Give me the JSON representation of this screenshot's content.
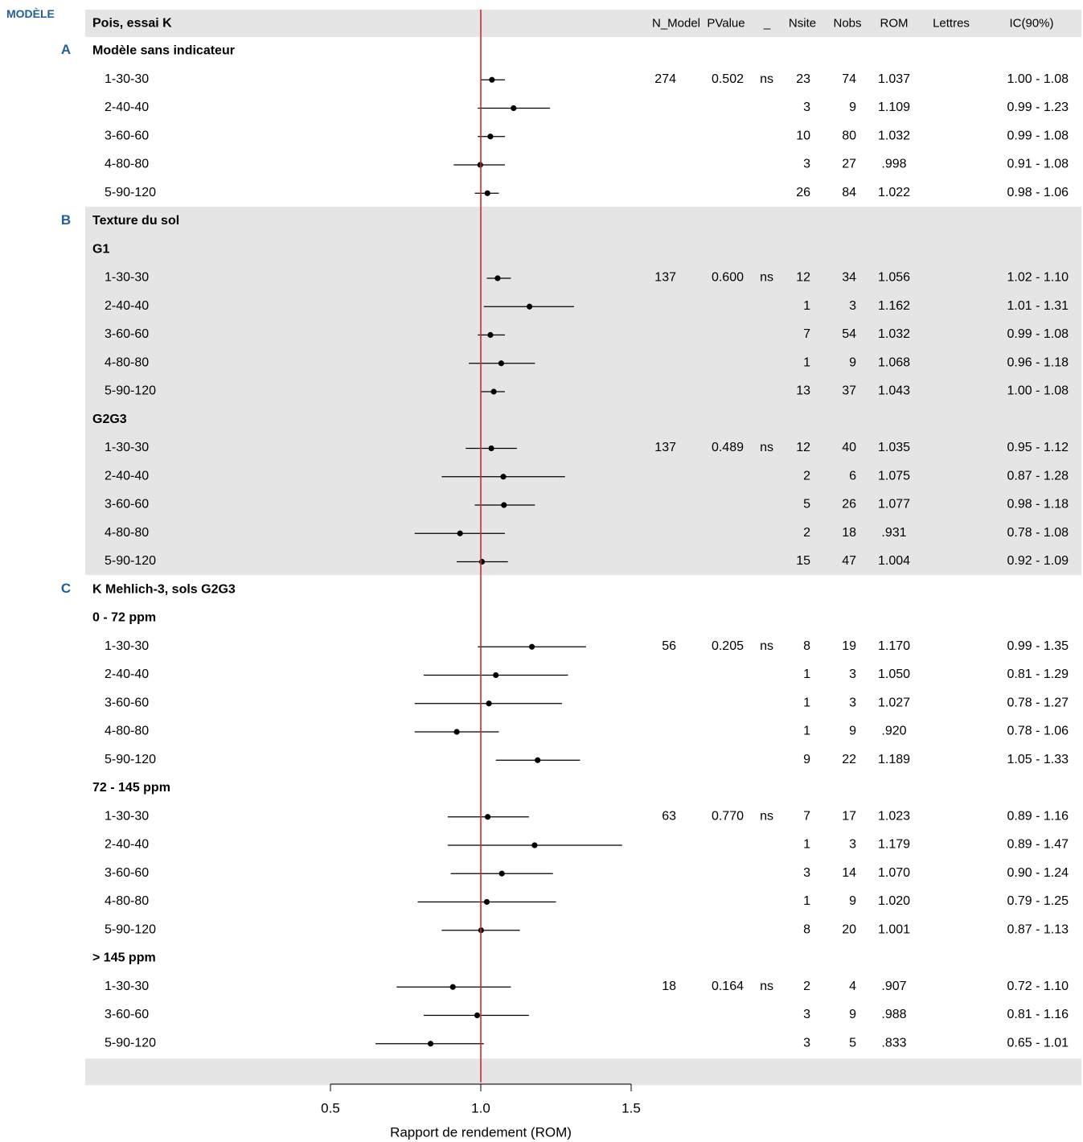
{
  "corner_label": "MODÈLE",
  "panel_letters": [
    "A",
    "B",
    "C"
  ],
  "colors": {
    "reference_line": "#d62728",
    "shaded_band": "#e5e5e5",
    "marker": "#000000",
    "panel_letter": "#1f5f9e"
  },
  "chart_data": {
    "type": "forest",
    "header": {
      "label": "Pois, essai K",
      "columns": [
        "N_Model",
        "PValue",
        "_",
        "Nsite",
        "Nobs",
        "ROM",
        "Lettres",
        "IC(90%)"
      ]
    },
    "xlabel": "Rapport de rendement (ROM)",
    "xticks": [
      "0.5",
      "1.0",
      "1.5"
    ],
    "xlim": [
      0.5,
      1.5
    ],
    "reference_line": 1.0,
    "rows": [
      {
        "label": "Modèle sans indicateur",
        "bold": true,
        "band": 0
      },
      {
        "label": "1-30-30",
        "band": 0,
        "est": 1.037,
        "lo": 1.0,
        "hi": 1.08,
        "n_model": "274",
        "pvalue": "0.502",
        "sig": "ns",
        "nsite": "23",
        "nobs": "74",
        "rom": "1.037",
        "ic": "1.00 - 1.08"
      },
      {
        "label": "2-40-40",
        "band": 0,
        "est": 1.109,
        "lo": 0.99,
        "hi": 1.23,
        "nsite": "3",
        "nobs": "9",
        "rom": "1.109",
        "ic": "0.99 - 1.23"
      },
      {
        "label": "3-60-60",
        "band": 0,
        "est": 1.032,
        "lo": 0.99,
        "hi": 1.08,
        "nsite": "10",
        "nobs": "80",
        "rom": "1.032",
        "ic": "0.99 - 1.08"
      },
      {
        "label": "4-80-80",
        "band": 0,
        "est": 0.998,
        "lo": 0.91,
        "hi": 1.08,
        "nsite": "3",
        "nobs": "27",
        "rom": ".998",
        "ic": "0.91 - 1.08"
      },
      {
        "label": "5-90-120",
        "band": 0,
        "est": 1.022,
        "lo": 0.98,
        "hi": 1.06,
        "nsite": "26",
        "nobs": "84",
        "rom": "1.022",
        "ic": "0.98 - 1.06"
      },
      {
        "label": "Texture du sol",
        "bold": true,
        "band": 1
      },
      {
        "label": "G1",
        "bold": true,
        "band": 1
      },
      {
        "label": "1-30-30",
        "band": 1,
        "est": 1.056,
        "lo": 1.02,
        "hi": 1.1,
        "n_model": "137",
        "pvalue": "0.600",
        "sig": "ns",
        "nsite": "12",
        "nobs": "34",
        "rom": "1.056",
        "ic": "1.02 - 1.10"
      },
      {
        "label": "2-40-40",
        "band": 1,
        "est": 1.162,
        "lo": 1.01,
        "hi": 1.31,
        "nsite": "1",
        "nobs": "3",
        "rom": "1.162",
        "ic": "1.01 - 1.31"
      },
      {
        "label": "3-60-60",
        "band": 1,
        "est": 1.032,
        "lo": 0.99,
        "hi": 1.08,
        "nsite": "7",
        "nobs": "54",
        "rom": "1.032",
        "ic": "0.99 - 1.08"
      },
      {
        "label": "4-80-80",
        "band": 1,
        "est": 1.068,
        "lo": 0.96,
        "hi": 1.18,
        "nsite": "1",
        "nobs": "9",
        "rom": "1.068",
        "ic": "0.96 - 1.18"
      },
      {
        "label": "5-90-120",
        "band": 1,
        "est": 1.043,
        "lo": 1.0,
        "hi": 1.08,
        "nsite": "13",
        "nobs": "37",
        "rom": "1.043",
        "ic": "1.00 - 1.08"
      },
      {
        "label": "G2G3",
        "bold": true,
        "band": 1
      },
      {
        "label": "1-30-30",
        "band": 1,
        "est": 1.035,
        "lo": 0.95,
        "hi": 1.12,
        "n_model": "137",
        "pvalue": "0.489",
        "sig": "ns",
        "nsite": "12",
        "nobs": "40",
        "rom": "1.035",
        "ic": "0.95 - 1.12"
      },
      {
        "label": "2-40-40",
        "band": 1,
        "est": 1.075,
        "lo": 0.87,
        "hi": 1.28,
        "nsite": "2",
        "nobs": "6",
        "rom": "1.075",
        "ic": "0.87 - 1.28"
      },
      {
        "label": "3-60-60",
        "band": 1,
        "est": 1.077,
        "lo": 0.98,
        "hi": 1.18,
        "nsite": "5",
        "nobs": "26",
        "rom": "1.077",
        "ic": "0.98 - 1.18"
      },
      {
        "label": "4-80-80",
        "band": 1,
        "est": 0.931,
        "lo": 0.78,
        "hi": 1.08,
        "nsite": "2",
        "nobs": "18",
        "rom": ".931",
        "ic": "0.78 - 1.08"
      },
      {
        "label": "5-90-120",
        "band": 1,
        "est": 1.004,
        "lo": 0.92,
        "hi": 1.09,
        "nsite": "15",
        "nobs": "47",
        "rom": "1.004",
        "ic": "0.92 - 1.09"
      },
      {
        "label": "K Mehlich-3, sols G2G3",
        "bold": true,
        "band": 0
      },
      {
        "label": "0 - 72 ppm",
        "bold": true,
        "band": 0
      },
      {
        "label": "1-30-30",
        "band": 0,
        "est": 1.17,
        "lo": 0.99,
        "hi": 1.35,
        "n_model": "56",
        "pvalue": "0.205",
        "sig": "ns",
        "nsite": "8",
        "nobs": "19",
        "rom": "1.170",
        "ic": "0.99 - 1.35"
      },
      {
        "label": "2-40-40",
        "band": 0,
        "est": 1.05,
        "lo": 0.81,
        "hi": 1.29,
        "nsite": "1",
        "nobs": "3",
        "rom": "1.050",
        "ic": "0.81 - 1.29"
      },
      {
        "label": "3-60-60",
        "band": 0,
        "est": 1.027,
        "lo": 0.78,
        "hi": 1.27,
        "nsite": "1",
        "nobs": "3",
        "rom": "1.027",
        "ic": "0.78 - 1.27"
      },
      {
        "label": "4-80-80",
        "band": 0,
        "est": 0.92,
        "lo": 0.78,
        "hi": 1.06,
        "nsite": "1",
        "nobs": "9",
        "rom": ".920",
        "ic": "0.78 - 1.06"
      },
      {
        "label": "5-90-120",
        "band": 0,
        "est": 1.189,
        "lo": 1.05,
        "hi": 1.33,
        "nsite": "9",
        "nobs": "22",
        "rom": "1.189",
        "ic": "1.05 - 1.33"
      },
      {
        "label": "72 - 145 ppm",
        "bold": true,
        "band": 0
      },
      {
        "label": "1-30-30",
        "band": 0,
        "est": 1.023,
        "lo": 0.89,
        "hi": 1.16,
        "n_model": "63",
        "pvalue": "0.770",
        "sig": "ns",
        "nsite": "7",
        "nobs": "17",
        "rom": "1.023",
        "ic": "0.89 - 1.16"
      },
      {
        "label": "2-40-40",
        "band": 0,
        "est": 1.179,
        "lo": 0.89,
        "hi": 1.47,
        "nsite": "1",
        "nobs": "3",
        "rom": "1.179",
        "ic": "0.89 - 1.47"
      },
      {
        "label": "3-60-60",
        "band": 0,
        "est": 1.07,
        "lo": 0.9,
        "hi": 1.24,
        "nsite": "3",
        "nobs": "14",
        "rom": "1.070",
        "ic": "0.90 - 1.24"
      },
      {
        "label": "4-80-80",
        "band": 0,
        "est": 1.02,
        "lo": 0.79,
        "hi": 1.25,
        "nsite": "1",
        "nobs": "9",
        "rom": "1.020",
        "ic": "0.79 - 1.25"
      },
      {
        "label": "5-90-120",
        "band": 0,
        "est": 1.001,
        "lo": 0.87,
        "hi": 1.13,
        "nsite": "8",
        "nobs": "20",
        "rom": "1.001",
        "ic": "0.87 - 1.13"
      },
      {
        "label": "> 145 ppm",
        "bold": true,
        "band": 0
      },
      {
        "label": "1-30-30",
        "band": 0,
        "est": 0.907,
        "lo": 0.72,
        "hi": 1.1,
        "n_model": "18",
        "pvalue": "0.164",
        "sig": "ns",
        "nsite": "2",
        "nobs": "4",
        "rom": ".907",
        "ic": "0.72 - 1.10"
      },
      {
        "label": "3-60-60",
        "band": 0,
        "est": 0.988,
        "lo": 0.81,
        "hi": 1.16,
        "nsite": "3",
        "nobs": "9",
        "rom": ".988",
        "ic": "0.81 - 1.16"
      },
      {
        "label": "5-90-120",
        "band": 0,
        "est": 0.833,
        "lo": 0.65,
        "hi": 1.01,
        "nsite": "3",
        "nobs": "5",
        "rom": ".833",
        "ic": "0.65 - 1.01"
      }
    ]
  }
}
